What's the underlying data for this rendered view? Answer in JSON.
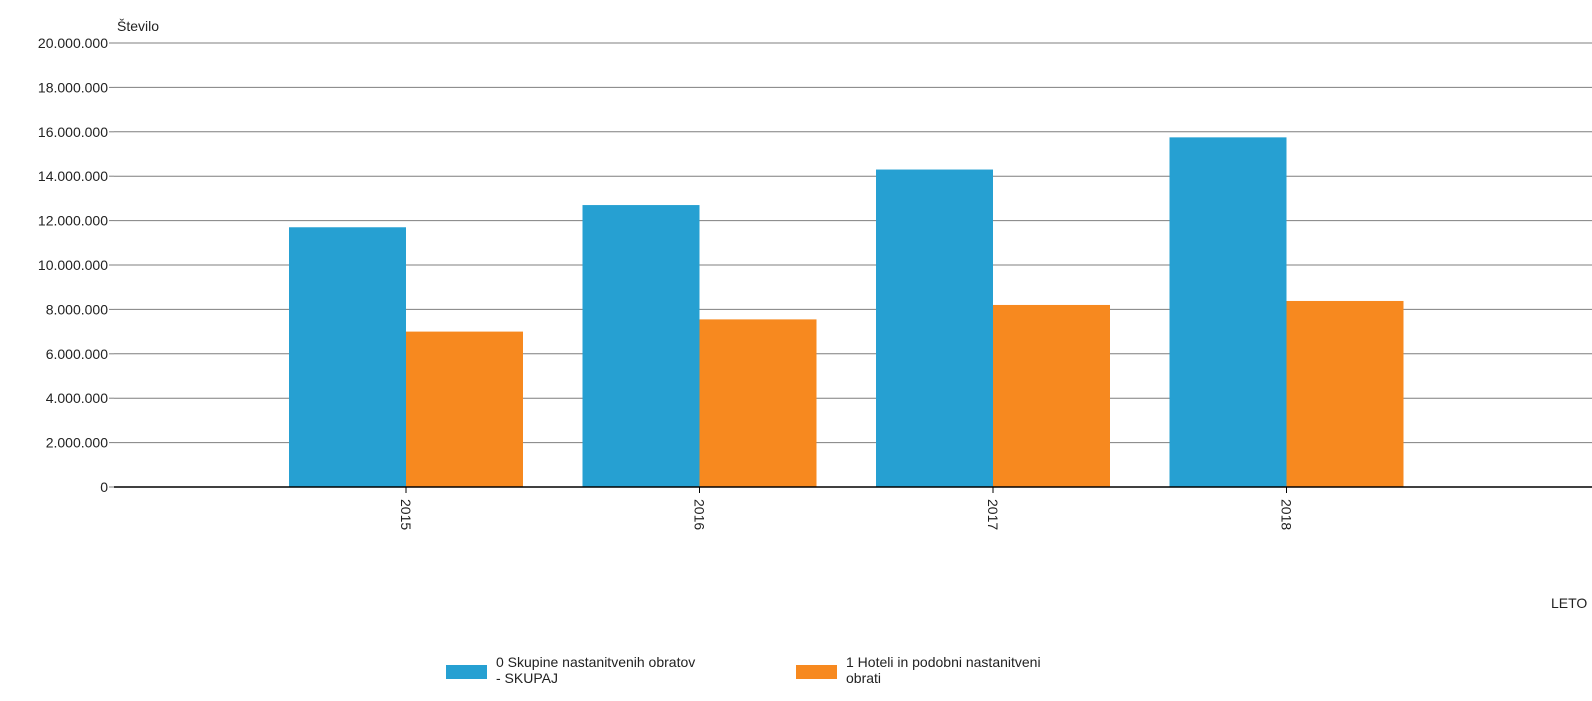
{
  "chart_data": {
    "type": "bar",
    "title": "",
    "ylabel": "Število",
    "xlabel": "LETO",
    "categories": [
      "2015",
      "2016",
      "2017",
      "2018"
    ],
    "ylim": [
      0,
      20000000
    ],
    "yticks": [
      0,
      2000000,
      4000000,
      6000000,
      8000000,
      10000000,
      12000000,
      14000000,
      16000000,
      18000000,
      20000000
    ],
    "ytick_labels": [
      "0",
      "2.000.000",
      "4.000.000",
      "6.000.000",
      "8.000.000",
      "10.000.000",
      "12.000.000",
      "14.000.000",
      "16.000.000",
      "18.000.000",
      "20.000.000"
    ],
    "grid": true,
    "legend_position": "bottom",
    "series": [
      {
        "name": "0 Skupine nastanitvenih obratov - SKUPAJ",
        "legend_lines": [
          "0 Skupine nastanitvenih obratov",
          "- SKUPAJ"
        ],
        "color": "#26a0d2",
        "values": [
          11700000,
          12700000,
          14300000,
          15750000
        ]
      },
      {
        "name": "1 Hoteli in podobni nastanitveni obrati",
        "legend_lines": [
          "1 Hoteli in podobni nastanitveni",
          "obrati"
        ],
        "color": "#f7891f",
        "values": [
          7000000,
          7550000,
          8200000,
          8380000
        ]
      }
    ]
  }
}
